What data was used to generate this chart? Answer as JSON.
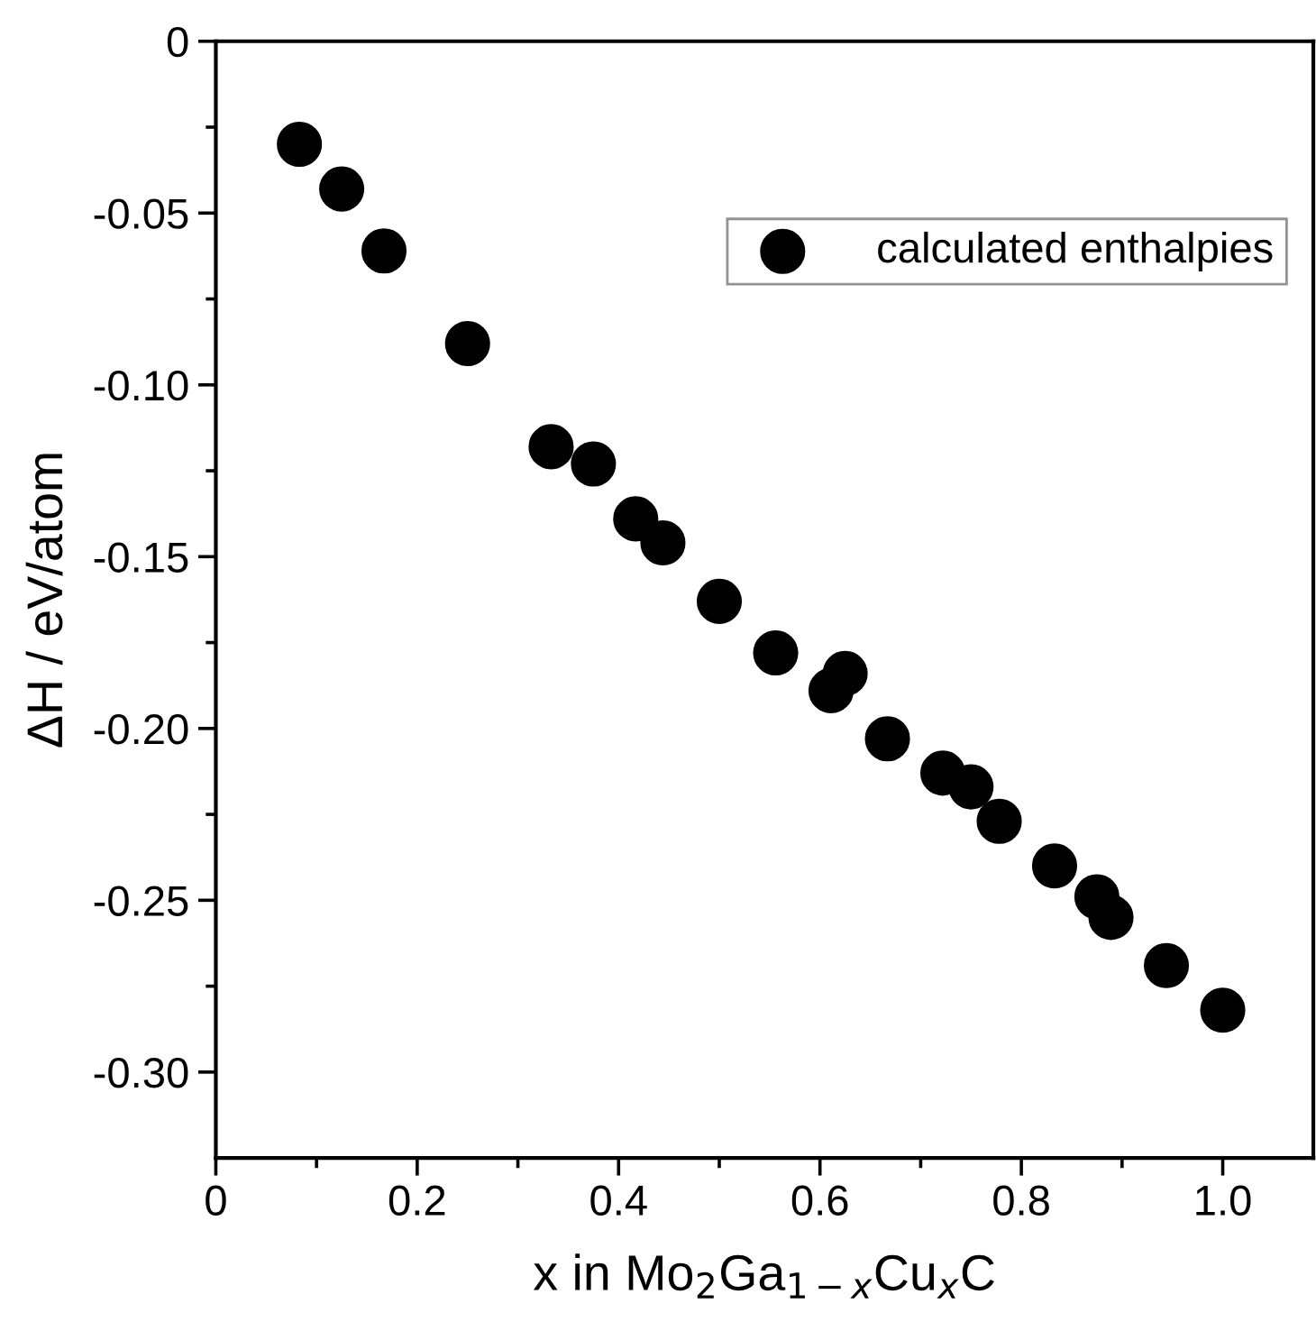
{
  "chart_data": {
    "type": "scatter",
    "xlabel": "x in Mo$_{2}$Ga$_{1−x}$Cu$_{x}$C",
    "ylabel": "ΔH / eV/atom",
    "x": [
      0.083,
      0.125,
      0.167,
      0.25,
      0.333,
      0.375,
      0.417,
      0.444,
      0.5,
      0.556,
      0.611,
      0.625,
      0.667,
      0.722,
      0.75,
      0.778,
      0.833,
      0.875,
      0.889,
      0.944,
      1.0
    ],
    "series": [
      {
        "name": "calculated enthalpies",
        "color": "#000000",
        "values": [
          -0.03,
          -0.043,
          -0.061,
          -0.088,
          -0.118,
          -0.123,
          -0.139,
          -0.146,
          -0.163,
          -0.178,
          -0.189,
          -0.184,
          -0.203,
          -0.213,
          -0.217,
          -0.227,
          -0.24,
          -0.249,
          -0.255,
          -0.269,
          -0.282
        ]
      }
    ],
    "xlim": [
      0,
      1.09
    ],
    "ylim": [
      -0.325,
      0
    ],
    "xticks": [
      {
        "value": 0,
        "label": "0"
      },
      {
        "value": 0.1,
        "label": null
      },
      {
        "value": 0.2,
        "label": "0.2"
      },
      {
        "value": 0.3,
        "label": null
      },
      {
        "value": 0.4,
        "label": "0.4"
      },
      {
        "value": 0.5,
        "label": null
      },
      {
        "value": 0.6,
        "label": "0.6"
      },
      {
        "value": 0.7,
        "label": null
      },
      {
        "value": 0.8,
        "label": "0.8"
      },
      {
        "value": 0.9,
        "label": null
      },
      {
        "value": 1.0,
        "label": "1.0"
      }
    ],
    "yticks": [
      {
        "value": 0,
        "label": "0"
      },
      {
        "value": -0.025,
        "label": null
      },
      {
        "value": -0.05,
        "label": "-0.05"
      },
      {
        "value": -0.075,
        "label": null
      },
      {
        "value": -0.1,
        "label": "-0.10"
      },
      {
        "value": -0.125,
        "label": null
      },
      {
        "value": -0.15,
        "label": "-0.15"
      },
      {
        "value": -0.175,
        "label": null
      },
      {
        "value": -0.2,
        "label": "-0.20"
      },
      {
        "value": -0.225,
        "label": null
      },
      {
        "value": -0.25,
        "label": "-0.25"
      },
      {
        "value": -0.275,
        "label": null
      },
      {
        "value": -0.3,
        "label": "-0.30"
      }
    ],
    "marker": "circle",
    "legend": "top right",
    "grid": false
  }
}
